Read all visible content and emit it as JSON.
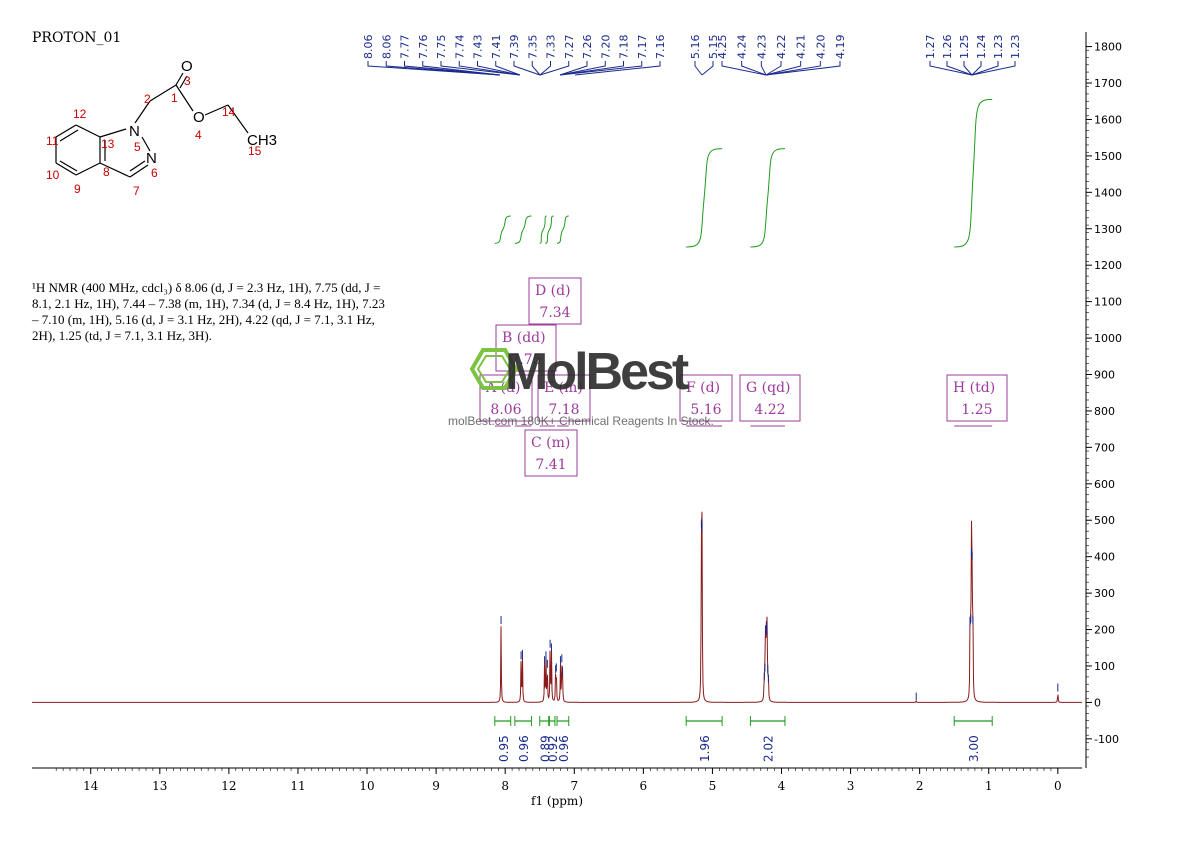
{
  "sample_name": "PROTON_01",
  "assignment_text": "¹H NMR (400 MHz, cdcl₃) δ 8.06 (d, J = 2.3 Hz, 1H), 7.75 (dd, J = 8.1, 2.1 Hz, 1H), 7.44 – 7.38 (m, 1H), 7.34 (d, J = 8.4 Hz, 1H), 7.23 – 7.10 (m, 1H), 5.16 (d, J = 3.1 Hz, 2H), 4.22 (qd, J = 7.1, 3.1 Hz, 2H), 1.25 (td, J = 7.1, 3.1 Hz, 3H).",
  "watermark": {
    "brand": "MolBest",
    "tagline": "molBest.com 180K+ Chemical Reagents In Stock."
  },
  "colors": {
    "spectrum": "#8b1a1a",
    "peak_labels": "#1a2a8c",
    "integral": "#1e9a1e",
    "multiplet_box": "#9b3b9b",
    "axis": "#000000",
    "watermark_icon": "#7cc243"
  },
  "molecule": {
    "atoms": [
      "O",
      "O",
      "N",
      "N",
      "CH3"
    ],
    "numbers": [
      "1",
      "2",
      "3",
      "4",
      "5",
      "6",
      "7",
      "8",
      "9",
      "10",
      "11",
      "12",
      "13",
      "14",
      "15"
    ]
  },
  "chart_data": {
    "type": "line",
    "title": "",
    "xlabel": "f1 (ppm)",
    "ylabel": "",
    "xlim": [
      14.85,
      -0.35
    ],
    "ylim": [
      -180,
      1840
    ],
    "x_ticks": [
      "14",
      "13",
      "12",
      "11",
      "10",
      "9",
      "8",
      "7",
      "6",
      "5",
      "4",
      "3",
      "2",
      "1",
      "0"
    ],
    "y_ticks": [
      "1800",
      "1700",
      "1600",
      "1500",
      "1400",
      "1300",
      "1200",
      "1100",
      "1000",
      "900",
      "800",
      "700",
      "600",
      "500",
      "400",
      "300",
      "200",
      "100",
      "0",
      "-100"
    ],
    "series": [
      {
        "peaks": [
          {
            "ppm": 8.06,
            "height": 215
          },
          {
            "ppm": 7.77,
            "height": 118
          },
          {
            "ppm": 7.75,
            "height": 122
          },
          {
            "ppm": 7.43,
            "height": 105
          },
          {
            "ppm": 7.41,
            "height": 118
          },
          {
            "ppm": 7.39,
            "height": 95
          },
          {
            "ppm": 7.35,
            "height": 150
          },
          {
            "ppm": 7.33,
            "height": 140
          },
          {
            "ppm": 7.27,
            "height": 80
          },
          {
            "ppm": 7.26,
            "height": 85
          },
          {
            "ppm": 7.2,
            "height": 105
          },
          {
            "ppm": 7.18,
            "height": 110
          },
          {
            "ppm": 7.17,
            "height": 75
          },
          {
            "ppm": 5.16,
            "height": 480
          },
          {
            "ppm": 5.15,
            "height": 470
          },
          {
            "ppm": 4.25,
            "height": 60
          },
          {
            "ppm": 4.24,
            "height": 85
          },
          {
            "ppm": 4.23,
            "height": 190
          },
          {
            "ppm": 4.22,
            "height": 200
          },
          {
            "ppm": 4.21,
            "height": 185
          },
          {
            "ppm": 4.2,
            "height": 80
          },
          {
            "ppm": 4.19,
            "height": 55
          },
          {
            "ppm": 2.05,
            "height": 5
          },
          {
            "ppm": 1.27,
            "height": 210
          },
          {
            "ppm": 1.26,
            "height": 220
          },
          {
            "ppm": 1.25,
            "height": 400
          },
          {
            "ppm": 1.24,
            "height": 390
          },
          {
            "ppm": 1.23,
            "height": 215
          },
          {
            "ppm": 0.0,
            "height": 30
          }
        ]
      }
    ],
    "peak_labels": [
      "8.06",
      "8.06",
      "7.77",
      "7.76",
      "7.75",
      "7.74",
      "7.43",
      "7.41",
      "7.39",
      "7.35",
      "7.33",
      "7.27",
      "7.26",
      "7.20",
      "7.18",
      "7.17",
      "7.16",
      "5.16",
      "5.15",
      "4.25",
      "4.24",
      "4.23",
      "4.22",
      "4.21",
      "4.20",
      "4.19",
      "1.27",
      "1.26",
      "1.25",
      "1.24",
      "1.23",
      "1.23"
    ],
    "integrals": [
      {
        "from": 8.15,
        "to": 7.92,
        "value": "0.95"
      },
      {
        "from": 7.86,
        "to": 7.62,
        "value": "0.96"
      },
      {
        "from": 7.5,
        "to": 7.36,
        "value": "0.89"
      },
      {
        "from": 7.37,
        "to": 7.28,
        "value": "0.92"
      },
      {
        "from": 7.25,
        "to": 7.08,
        "value": "0.96"
      },
      {
        "from": 5.38,
        "to": 4.86,
        "value": "1.96"
      },
      {
        "from": 4.45,
        "to": 3.95,
        "value": "2.02"
      },
      {
        "from": 1.5,
        "to": 0.95,
        "value": "3.00"
      }
    ],
    "integral_curves": [
      {
        "from": 8.15,
        "to": 7.92
      },
      {
        "from": 7.86,
        "to": 7.62
      },
      {
        "from": 7.5,
        "to": 7.4
      },
      {
        "from": 7.42,
        "to": 7.3
      },
      {
        "from": 7.25,
        "to": 7.08
      },
      {
        "from": 5.38,
        "to": 4.86
      },
      {
        "from": 4.45,
        "to": 3.95
      },
      {
        "from": 1.5,
        "to": 0.95
      }
    ],
    "multiplets": [
      {
        "letter": "A",
        "type": "d",
        "shift": "8.06",
        "range": [
          8.15,
          7.92
        ]
      },
      {
        "letter": "B",
        "type": "dd",
        "shift": "7.75",
        "range": [
          7.86,
          7.62
        ]
      },
      {
        "letter": "C",
        "type": "m",
        "shift": "7.41",
        "range": [
          7.5,
          7.36
        ]
      },
      {
        "letter": "D",
        "type": "d",
        "shift": "7.34",
        "range": [
          7.37,
          7.28
        ]
      },
      {
        "letter": "E",
        "type": "m",
        "shift": "7.18",
        "range": [
          7.25,
          7.08
        ]
      },
      {
        "letter": "F",
        "type": "d",
        "shift": "5.16",
        "range": [
          5.38,
          4.86
        ]
      },
      {
        "letter": "G",
        "type": "qd",
        "shift": "4.22",
        "range": [
          4.45,
          3.95
        ]
      },
      {
        "letter": "H",
        "type": "td",
        "shift": "1.25",
        "range": [
          1.5,
          0.95
        ]
      }
    ]
  }
}
